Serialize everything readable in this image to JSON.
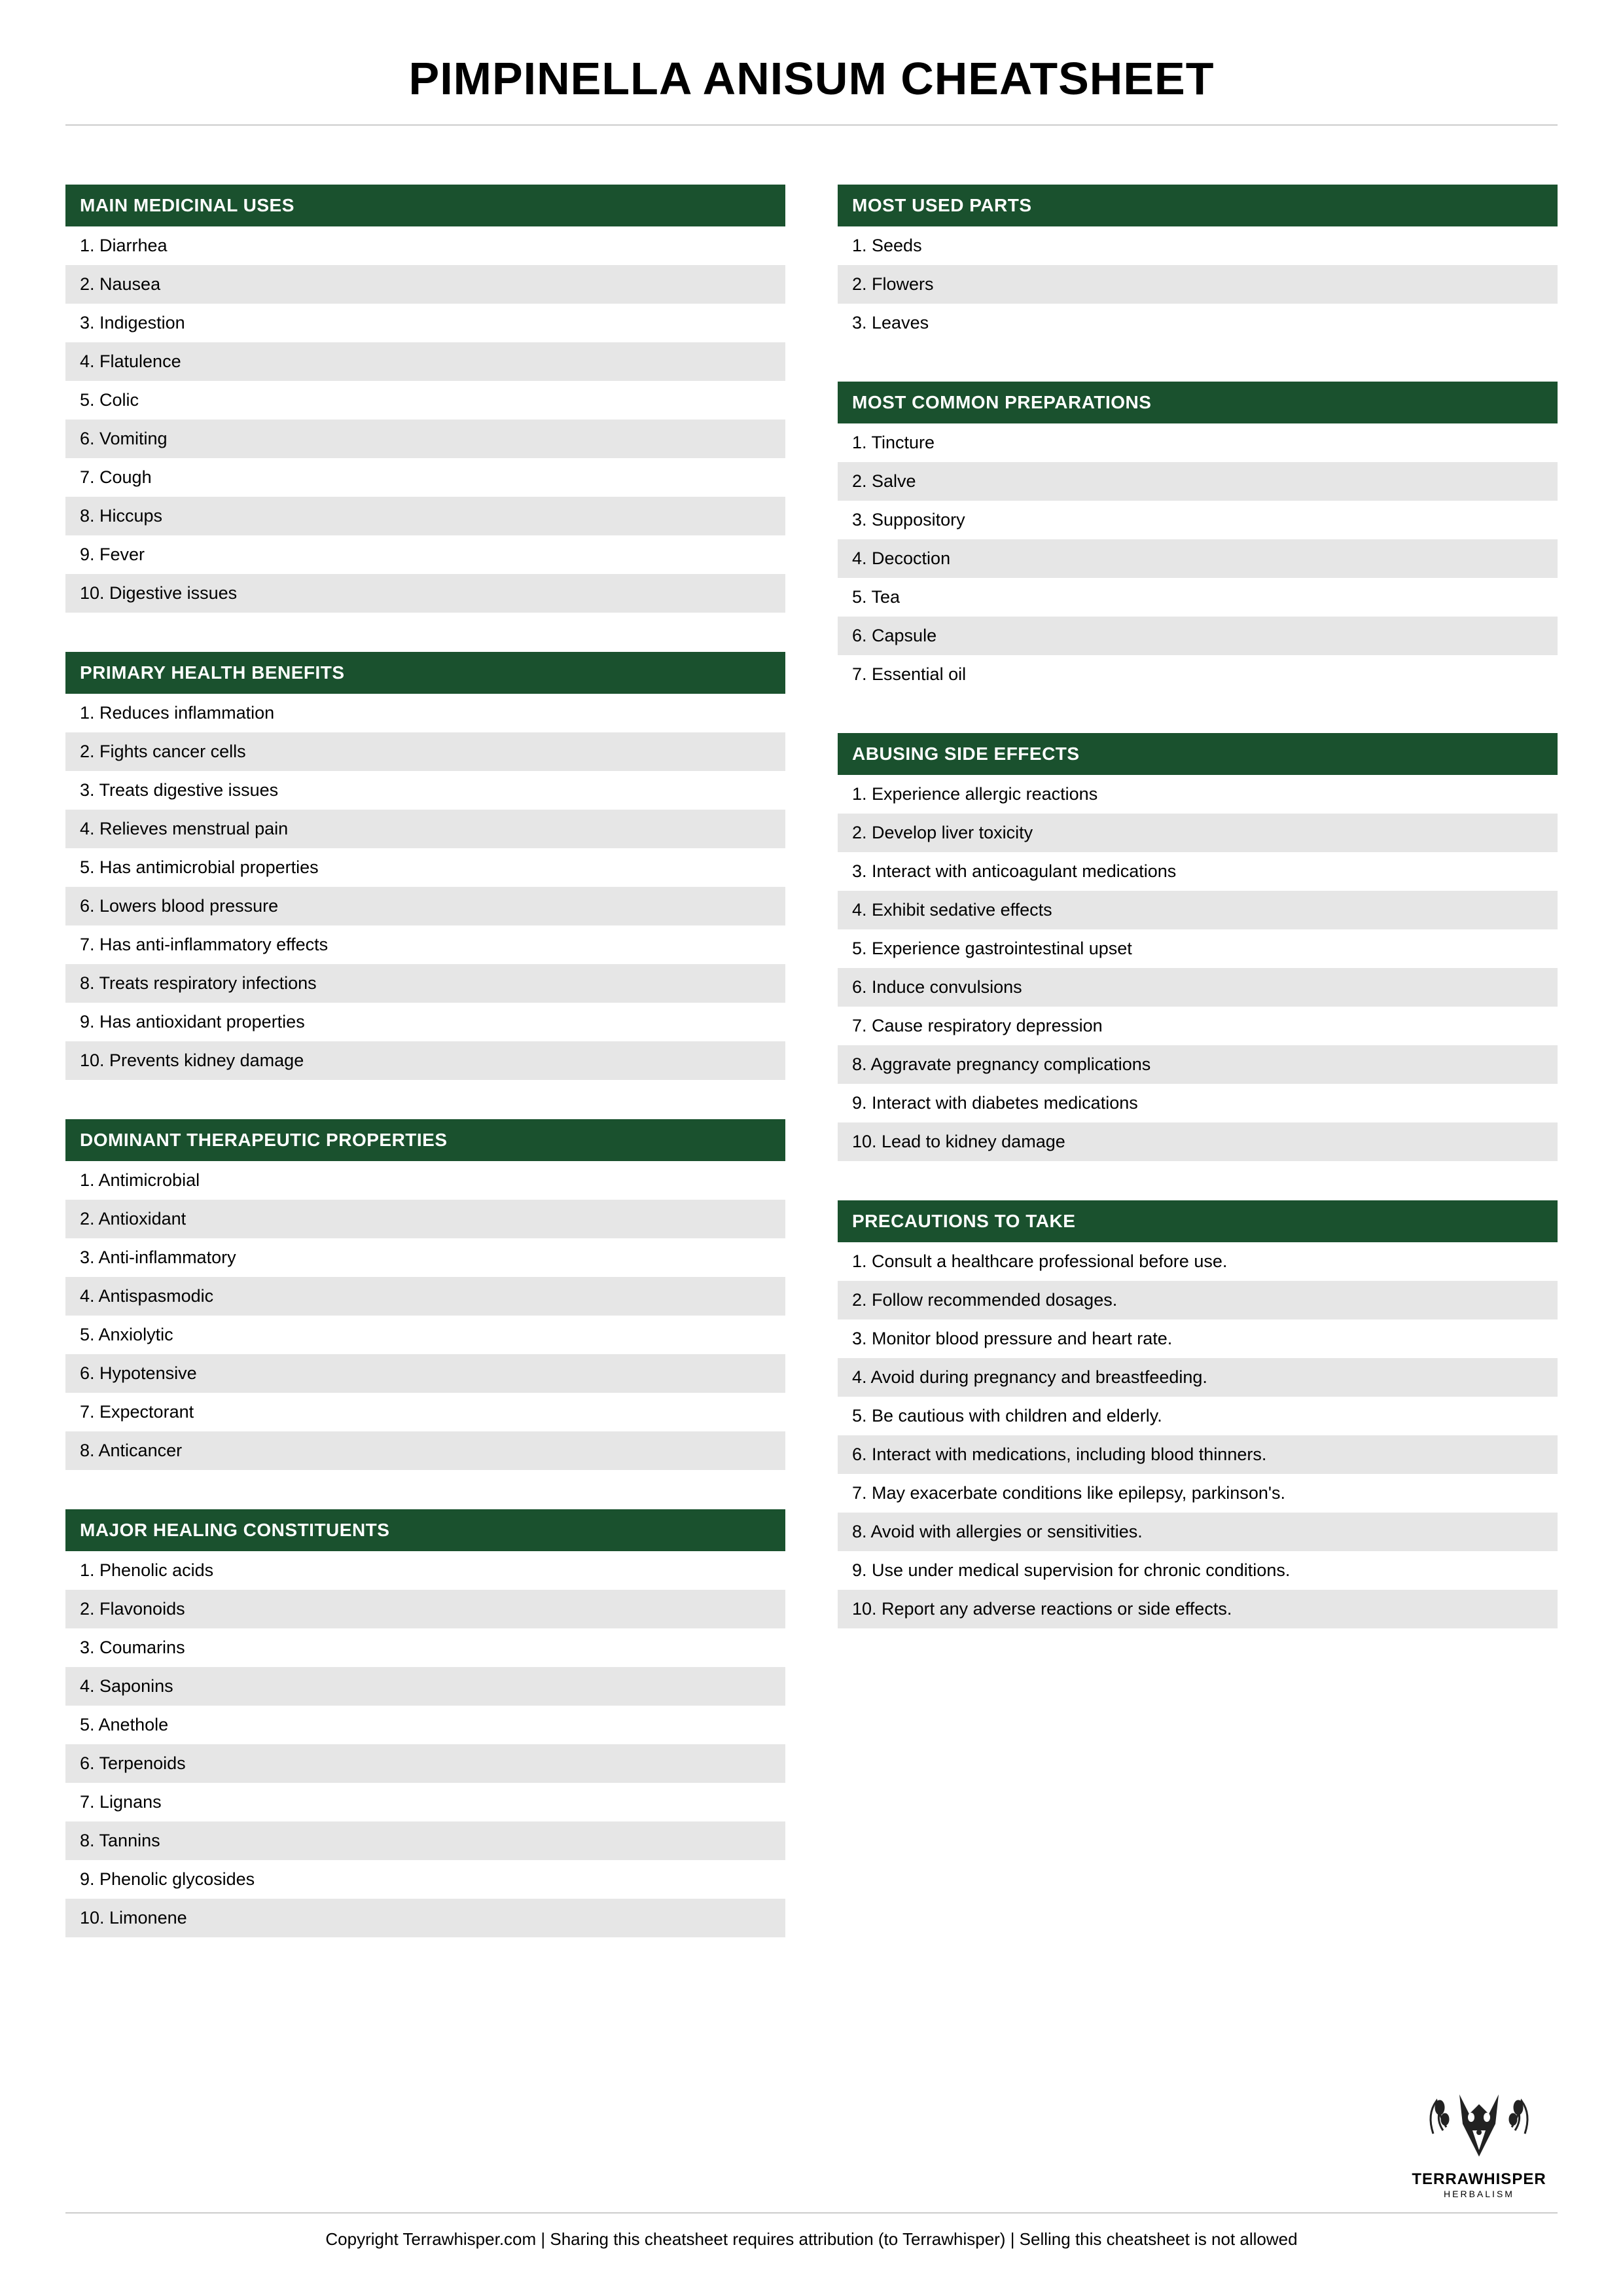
{
  "title": "PIMPINELLA ANISUM CHEATSHEET",
  "header_bg": "#1a512e",
  "header_fg": "#ffffff",
  "row_odd_bg": "#ffffff",
  "row_even_bg": "#e6e6e6",
  "left": [
    {
      "title": "MAIN MEDICINAL USES",
      "items": [
        "Diarrhea",
        "Nausea",
        "Indigestion",
        "Flatulence",
        "Colic",
        "Vomiting",
        "Cough",
        "Hiccups",
        "Fever",
        "Digestive issues"
      ]
    },
    {
      "title": "PRIMARY HEALTH BENEFITS",
      "items": [
        "Reduces inflammation",
        "Fights cancer cells",
        "Treats digestive issues",
        "Relieves menstrual pain",
        "Has antimicrobial properties",
        "Lowers blood pressure",
        "Has anti-inflammatory effects",
        "Treats respiratory infections",
        "Has antioxidant properties",
        "Prevents kidney damage"
      ]
    },
    {
      "title": "DOMINANT THERAPEUTIC PROPERTIES",
      "items": [
        "Antimicrobial",
        "Antioxidant",
        "Anti-inflammatory",
        "Antispasmodic",
        "Anxiolytic",
        "Hypotensive",
        "Expectorant",
        "Anticancer"
      ]
    },
    {
      "title": "MAJOR HEALING CONSTITUENTS",
      "items": [
        "Phenolic acids",
        "Flavonoids",
        "Coumarins",
        "Saponins",
        "Anethole",
        "Terpenoids",
        "Lignans",
        "Tannins",
        "Phenolic glycosides",
        "Limonene"
      ]
    }
  ],
  "right": [
    {
      "title": "MOST USED PARTS",
      "items": [
        "Seeds",
        "Flowers",
        "Leaves"
      ]
    },
    {
      "title": "MOST COMMON PREPARATIONS",
      "items": [
        "Tincture",
        "Salve",
        "Suppository",
        "Decoction",
        "Tea",
        "Capsule",
        "Essential oil"
      ]
    },
    {
      "title": "ABUSING SIDE EFFECTS",
      "items": [
        "Experience allergic reactions",
        "Develop liver toxicity",
        "Interact with anticoagulant medications",
        "Exhibit sedative effects",
        "Experience gastrointestinal upset",
        "Induce convulsions",
        "Cause respiratory depression",
        "Aggravate pregnancy complications",
        "Interact with diabetes medications",
        "Lead to kidney damage"
      ]
    },
    {
      "title": "PRECAUTIONS TO TAKE",
      "items": [
        "Consult a healthcare professional before use.",
        "Follow recommended dosages.",
        "Monitor blood pressure and heart rate.",
        "Avoid during pregnancy and breastfeeding.",
        "Be cautious with children and elderly.",
        "Interact with medications, including blood thinners.",
        "May exacerbate conditions like epilepsy, parkinson's.",
        "Avoid with allergies or sensitivities.",
        "Use under medical supervision for chronic conditions.",
        "Report any adverse reactions or side effects."
      ]
    }
  ],
  "logo": {
    "name": "TERRAWHISPER",
    "sub": "HERBALISM"
  },
  "copyright": "Copyright Terrawhisper.com | Sharing this cheatsheet requires attribution (to Terrawhisper) | Selling this cheatsheet is not allowed"
}
